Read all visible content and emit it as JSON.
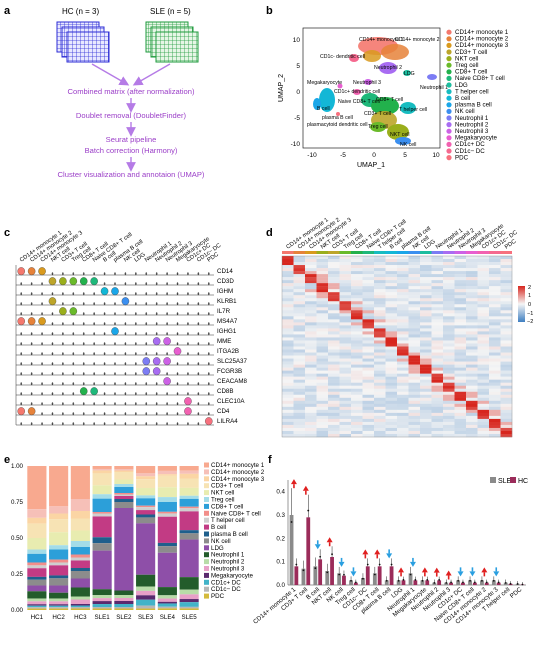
{
  "panels": {
    "a": {
      "label": "a",
      "hc_group": "HC (n = 3)",
      "sle_group": "SLE (n = 5)",
      "hc_color": "#2b2bd6",
      "sle_color": "#1e9a3c",
      "steps": [
        "Combined matrix (after normalization)",
        "Doublet removal (DoubletFinder)",
        "Seurat pipeline",
        "Batch correction (Harmony)",
        "Cluster visualization and annotaion (UMAP)"
      ]
    },
    "b": {
      "label": "b",
      "xlabel": "UMAP_1",
      "ylabel": "UMAP_2",
      "xticks": [
        "-10",
        "-5",
        "0",
        "5",
        "10"
      ],
      "yticks": [
        "10",
        "5",
        "0",
        "-5",
        "-10"
      ],
      "cluster_labels": [
        "CD14+ monocyte 1",
        "CD14+ monocyte 2",
        "CD1c- dendritic cell",
        "LDG",
        "Neutrophil 2",
        "Megakaryocyte",
        "Neutrophil 3",
        "CD1c+ dendritic cell",
        "Neutrophil 1",
        "Naive CD8+ T cell",
        "B cell",
        "CD8+ T cell",
        "plasma B cell",
        "plasmacytoid dendritic cell",
        "T helper cell",
        "CD3+ T cell",
        "Treg cell",
        "NKT cell",
        "NK cell"
      ],
      "legend": [
        {
          "name": "CD14+ monocyte 1",
          "color": "#f4786e"
        },
        {
          "name": "CD14+ monocyte 2",
          "color": "#e6823a"
        },
        {
          "name": "CD14+ monocyte 3",
          "color": "#d99a1e"
        },
        {
          "name": "CD3+ T cell",
          "color": "#bda52a"
        },
        {
          "name": "NKT cell",
          "color": "#9aae1c"
        },
        {
          "name": "Treg cell",
          "color": "#6aba2a"
        },
        {
          "name": "CD8+ T cell",
          "color": "#22b14c"
        },
        {
          "name": "Naive CD8+ T cell",
          "color": "#1eb87a"
        },
        {
          "name": "LDG",
          "color": "#1cbd9f"
        },
        {
          "name": "T helper cell",
          "color": "#17bcc0"
        },
        {
          "name": "B cell",
          "color": "#13b7d6"
        },
        {
          "name": "plasma B cell",
          "color": "#1aa6e8"
        },
        {
          "name": "NK cell",
          "color": "#3b8ff0"
        },
        {
          "name": "Neutrophil 1",
          "color": "#7c7cf4"
        },
        {
          "name": "Neutrophil 2",
          "color": "#a86cf2"
        },
        {
          "name": "Neutrophil 3",
          "color": "#cd62e6"
        },
        {
          "name": "Megakaryocyte",
          "color": "#e85ed0"
        },
        {
          "name": "CD1c+ DC",
          "color": "#f261b0"
        },
        {
          "name": "CD1c− DC",
          "color": "#f5698f"
        },
        {
          "name": "PDC",
          "color": "#f7707d"
        }
      ]
    },
    "c": {
      "label": "c",
      "columns": [
        "CD14+ monocyte 1",
        "CD14+ monocyte 2",
        "CD14+ monocyte 3",
        "NKT cell",
        "CD3+ T cell",
        "Treg cell",
        "CD8+ T cell",
        "Naive CD8+ T cell",
        "B cell",
        "plasma B cell",
        "NK cell",
        "LDG",
        "Neutrophil 1",
        "Neutrophil 2",
        "Neutrophil 3",
        "Megakaryocyte",
        "CD1c+ DC",
        "CD1c− DC",
        "PDC"
      ],
      "genes": [
        "CD14",
        "CD3D",
        "IGHM",
        "KLRB1",
        "IL7R",
        "MS4A7",
        "IGHG1",
        "MME",
        "ITGA2B",
        "SLC25A37",
        "FCGR3B",
        "CEACAM8",
        "CD8B",
        "CLEC10A",
        "CD4",
        "LILRA4"
      ]
    },
    "d": {
      "label": "d",
      "columns": [
        "CD14+ monocyte 1",
        "CD14+ monocyte 2",
        "CD14+ monocyte 3",
        "NKT cell",
        "CD3+ T cell",
        "Treg cell",
        "CD8+ T cell",
        "Naive CD8+ T cell",
        "T helper cell",
        "B cell",
        "plasma B cell",
        "NK cell",
        "LDG",
        "Neutrophil 1",
        "Neutrophil 2",
        "Neutrophil 3",
        "Megakaryocyte",
        "CD1c+ DC",
        "CD1c− DC",
        "PDC"
      ],
      "colorbar_ticks": [
        "2",
        "1",
        "0",
        "−1",
        "−2"
      ]
    },
    "e": {
      "label": "e",
      "chart_data": {
        "type": "bar",
        "stacked": true,
        "categories": [
          "HC1",
          "HC2",
          "HC3",
          "SLE1",
          "SLE2",
          "SLE3",
          "SLE4",
          "SLE5"
        ],
        "ylim": [
          0,
          1
        ],
        "yticks": [
          "1.00",
          "0.75",
          "0.50",
          "0.25",
          "0.00"
        ],
        "legend_placement": "right",
        "series": [
          {
            "name": "CD14+ monocyte 1",
            "color": "#f8a98f",
            "values": [
              0.3,
              0.28,
              0.22,
              0.02,
              0.02,
              0.05,
              0.03,
              0.03
            ]
          },
          {
            "name": "CD14+ monocyte 2",
            "color": "#f6c0b8",
            "values": [
              0.06,
              0.05,
              0.08,
              0.01,
              0.01,
              0.02,
              0.02,
              0.02
            ]
          },
          {
            "name": "CD14+ monocyte 3",
            "color": "#fbd5a4",
            "values": [
              0.04,
              0.04,
              0.05,
              0.02,
              0.01,
              0.02,
              0.01,
              0.03
            ]
          },
          {
            "name": "CD3+ T cell",
            "color": "#f7e3b4",
            "values": [
              0.1,
              0.09,
              0.08,
              0.08,
              0.05,
              0.06,
              0.07,
              0.06
            ]
          },
          {
            "name": "NKT cell",
            "color": "#e8ecb0",
            "values": [
              0.08,
              0.09,
              0.07,
              0.06,
              0.03,
              0.05,
              0.06,
              0.05
            ]
          },
          {
            "name": "Treg cell",
            "color": "#a3dce8",
            "values": [
              0.03,
              0.03,
              0.04,
              0.03,
              0.02,
              0.02,
              0.03,
              0.02
            ]
          },
          {
            "name": "CD8+ T cell",
            "color": "#2c9fd9",
            "values": [
              0.06,
              0.07,
              0.05,
              0.09,
              0.04,
              0.05,
              0.06,
              0.05
            ]
          },
          {
            "name": "Naive CD8+ T cell",
            "color": "#f28e8a",
            "values": [
              0.02,
              0.02,
              0.02,
              0.01,
              0.01,
              0.01,
              0.01,
              0.01
            ]
          },
          {
            "name": "T helper cell",
            "color": "#cfcfcf",
            "values": [
              0.02,
              0.02,
              0.02,
              0.02,
              0.01,
              0.02,
              0.02,
              0.02
            ]
          },
          {
            "name": "B cell",
            "color": "#c23b84",
            "values": [
              0.06,
              0.07,
              0.05,
              0.14,
              0.02,
              0.03,
              0.16,
              0.12
            ]
          },
          {
            "name": "plasma B cell",
            "color": "#1f5f8c",
            "values": [
              0.02,
              0.02,
              0.02,
              0.04,
              0.02,
              0.02,
              0.02,
              0.02
            ]
          },
          {
            "name": "NK cell",
            "color": "#8c8c8c",
            "values": [
              0.04,
              0.05,
              0.05,
              0.05,
              0.04,
              0.04,
              0.04,
              0.04
            ]
          },
          {
            "name": "LDG",
            "color": "#8e4fa8",
            "values": [
              0.04,
              0.05,
              0.06,
              0.26,
              0.55,
              0.35,
              0.21,
              0.24
            ]
          },
          {
            "name": "Neutrophil 1",
            "color": "#235c2b",
            "values": [
              0.05,
              0.04,
              0.06,
              0.04,
              0.03,
              0.08,
              0.05,
              0.08
            ]
          },
          {
            "name": "Neutrophil 2",
            "color": "#b8dca8",
            "values": [
              0.02,
              0.02,
              0.02,
              0.02,
              0.02,
              0.03,
              0.02,
              0.03
            ]
          },
          {
            "name": "Neutrophil 3",
            "color": "#e8a0c8",
            "values": [
              0.02,
              0.02,
              0.03,
              0.02,
              0.02,
              0.03,
              0.02,
              0.03
            ]
          },
          {
            "name": "Megakaryocyte",
            "color": "#5a2a6e",
            "values": [
              0.01,
              0.01,
              0.01,
              0.02,
              0.02,
              0.03,
              0.01,
              0.02
            ]
          },
          {
            "name": "CD1c+ DC",
            "color": "#43b3c8",
            "values": [
              0.01,
              0.01,
              0.01,
              0.02,
              0.02,
              0.04,
              0.02,
              0.03
            ]
          },
          {
            "name": "CD1c− DC",
            "color": "#b7b7b7",
            "values": [
              0.01,
              0.01,
              0.01,
              0.01,
              0.01,
              0.02,
              0.01,
              0.01
            ]
          },
          {
            "name": "PDC",
            "color": "#d4ba3c",
            "values": [
              0.01,
              0.01,
              0.01,
              0.01,
              0.01,
              0.01,
              0.01,
              0.01
            ]
          }
        ]
      }
    },
    "f": {
      "label": "f",
      "chart_data": {
        "type": "bar",
        "ylim": [
          0,
          0.45
        ],
        "yticks": [
          "0.4",
          "0.3",
          "0.2",
          "0.1",
          "0.0"
        ],
        "legend_placement": "top-right",
        "series_names": [
          "SLE",
          "HC"
        ],
        "series_colors": [
          "#8a8a8a",
          "#9b2c5a"
        ],
        "categories": [
          "CD14+ monocyte 1",
          "CD3+ T cell",
          "B cell",
          "NKT cell",
          "NK cell",
          "Treg cell",
          "CD1c− DC",
          "CD8+ T cell",
          "plasma B cell",
          "LDG",
          "Neutrophil 1",
          "Megakaryocyte",
          "Neutrophil 2",
          "Neutrophil 3",
          "CD1c+ DC",
          "Naive CD8+ T cell",
          "CD14+ monocyte 2",
          "CD14+ monocyte 3",
          "T helper cell",
          "PDC"
        ],
        "sle": [
          0.3,
          0.07,
          0.08,
          0.06,
          0.05,
          0.02,
          0.03,
          0.05,
          0.02,
          0.02,
          0.05,
          0.02,
          0.01,
          0.01,
          0.02,
          0.02,
          0.02,
          0.02,
          0.01,
          0.005
        ],
        "hc": [
          0.08,
          0.29,
          0.11,
          0.12,
          0.04,
          0.01,
          0.08,
          0.08,
          0.08,
          0.02,
          0.02,
          0.02,
          0.02,
          0.01,
          0.01,
          0.01,
          0.01,
          0.01,
          0.005,
          0.002
        ],
        "arrows": [
          "up",
          "up",
          "down",
          "up",
          "down",
          "down",
          "up",
          "up",
          "down",
          "up",
          "down",
          "up",
          "up",
          "up",
          "down",
          "down",
          "up",
          "down",
          "none",
          "none"
        ],
        "arrow_colors": {
          "up": "#e02020",
          "down": "#2a9fe0"
        }
      }
    }
  }
}
